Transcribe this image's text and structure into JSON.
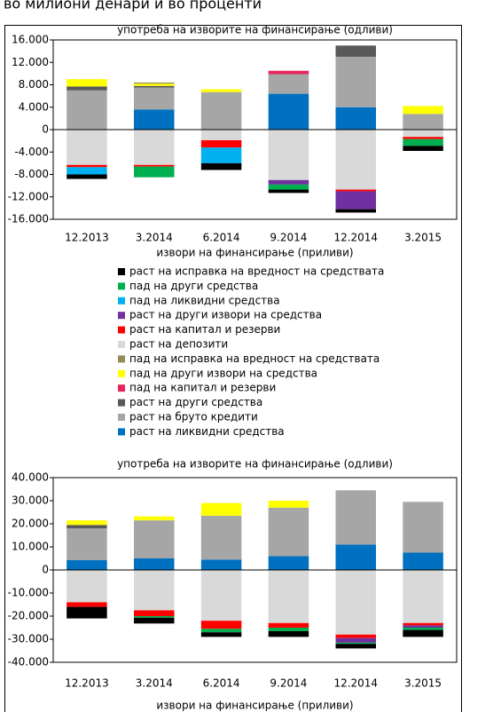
{
  "caption": "во милиони денари и во проценти",
  "chart_data": [
    {
      "type": "bar",
      "stacked": true,
      "title": "употреба на изворите на финансирање (одливи)",
      "xlabel": "извори на финансирање (приливи)",
      "categories": [
        "12.2013",
        "3.2014",
        "6.2014",
        "9.2014",
        "12.2014",
        "3.2015"
      ],
      "ylim": [
        -16000,
        16000
      ],
      "yticks": [
        {
          "value": 16000,
          "label": "16.000"
        },
        {
          "value": 12000,
          "label": "12.000"
        },
        {
          "value": 8000,
          "label": "8.000"
        },
        {
          "value": 4000,
          "label": "4.000"
        },
        0,
        {
          "value": -4000,
          "label": "-4.000"
        },
        {
          "value": -8000,
          "label": "-8.000"
        },
        {
          "value": -12000,
          "label": "-12.000"
        },
        {
          "value": -16000,
          "label": "-16.000"
        }
      ],
      "grid": false,
      "series": [
        {
          "name": "раст на исправка на вредност на средствата",
          "color": "#000000",
          "values": [
            -800,
            null,
            -1200,
            -600,
            -600,
            -900
          ]
        },
        {
          "name": "пад на други средства",
          "color": "#00b050",
          "values": [
            null,
            -1900,
            null,
            -900,
            null,
            -1200
          ]
        },
        {
          "name": "пад на ликвидни средства",
          "color": "#00b0f0",
          "values": [
            -1300,
            null,
            -2800,
            null,
            null,
            null
          ]
        },
        {
          "name": "раст на други извори на средства",
          "color": "#7030a0",
          "values": [
            null,
            null,
            null,
            -800,
            -3200,
            null
          ]
        },
        {
          "name": "раст на капитал и резерви",
          "color": "#ff0000",
          "values": [
            -400,
            -300,
            -1300,
            null,
            -300,
            -400
          ]
        },
        {
          "name": "раст на депозити",
          "color": "#d9d9d9",
          "values": [
            -6300,
            -6300,
            -1900,
            -9000,
            -10700,
            -1300
          ]
        },
        {
          "name": "пад на исправка на вредност на средствата",
          "color": "#948a54",
          "values": [
            null,
            200,
            null,
            null,
            null,
            null
          ]
        },
        {
          "name": "пад на други извори на средства",
          "color": "#ffff00",
          "values": [
            1300,
            400,
            500,
            null,
            null,
            1400
          ]
        },
        {
          "name": "пад на капитал и резерви",
          "color": "#e8245a",
          "values": [
            null,
            null,
            null,
            600,
            null,
            null
          ]
        },
        {
          "name": "раст на други средства",
          "color": "#595959",
          "values": [
            700,
            300,
            null,
            null,
            2000,
            null
          ]
        },
        {
          "name": "раст на бруто кредити",
          "color": "#a6a6a6",
          "values": [
            7000,
            3900,
            6700,
            3500,
            9000,
            2800
          ]
        },
        {
          "name": "раст на ликвидни средства",
          "color": "#0070c0",
          "values": [
            null,
            3600,
            null,
            6400,
            4000,
            null
          ]
        }
      ]
    },
    {
      "type": "bar",
      "stacked": true,
      "title": "употреба на изворите на финансирање (одливи)",
      "xlabel": "извори на финансирање (приливи)",
      "categories": [
        "12.2013",
        "3.2014",
        "6.2014",
        "9.2014",
        "12.2014",
        "3.2015"
      ],
      "ylim": [
        -40000,
        40000
      ],
      "yticks": [
        {
          "value": 40000,
          "label": "40.000"
        },
        {
          "value": 30000,
          "label": "30.000"
        },
        {
          "value": 20000,
          "label": "20.000"
        },
        {
          "value": 10000,
          "label": "10.000"
        },
        0,
        {
          "value": -10000,
          "label": "-10.000"
        },
        {
          "value": -20000,
          "label": "-20.000"
        },
        {
          "value": -30000,
          "label": "-30.000"
        },
        {
          "value": -40000,
          "label": "-40.000"
        }
      ],
      "grid": false,
      "series": [
        {
          "color": "#000000",
          "values": [
            -5000,
            -2500,
            -2000,
            -2500,
            -2000,
            -3000
          ]
        },
        {
          "color": "#00b050",
          "values": [
            null,
            -700,
            -1500,
            -1500,
            -500,
            -1000
          ]
        },
        {
          "color": "#00b0f0",
          "values": [
            null,
            null,
            null,
            null,
            null,
            null
          ]
        },
        {
          "color": "#7030a0",
          "values": [
            null,
            null,
            null,
            null,
            -2000,
            -1000
          ]
        },
        {
          "color": "#ff0000",
          "values": [
            -2000,
            -2500,
            -3500,
            -2000,
            -1500,
            -1000
          ]
        },
        {
          "color": "#d9d9d9",
          "values": [
            -14000,
            -17500,
            -22000,
            -23000,
            -28000,
            -23000
          ]
        },
        {
          "color": "#948a54",
          "values": [
            null,
            null,
            null,
            null,
            null,
            null
          ]
        },
        {
          "color": "#ffff00",
          "values": [
            2000,
            1700,
            5500,
            3000,
            null,
            null
          ]
        },
        {
          "color": "#e8245a",
          "values": [
            null,
            null,
            null,
            null,
            null,
            null
          ]
        },
        {
          "color": "#595959",
          "values": [
            1500,
            null,
            null,
            null,
            null,
            null
          ]
        },
        {
          "color": "#a6a6a6",
          "values": [
            13700,
            16500,
            19000,
            21000,
            23500,
            22000
          ]
        },
        {
          "color": "#0070c0",
          "values": [
            4300,
            5000,
            4500,
            6000,
            11000,
            7500
          ]
        }
      ]
    }
  ]
}
